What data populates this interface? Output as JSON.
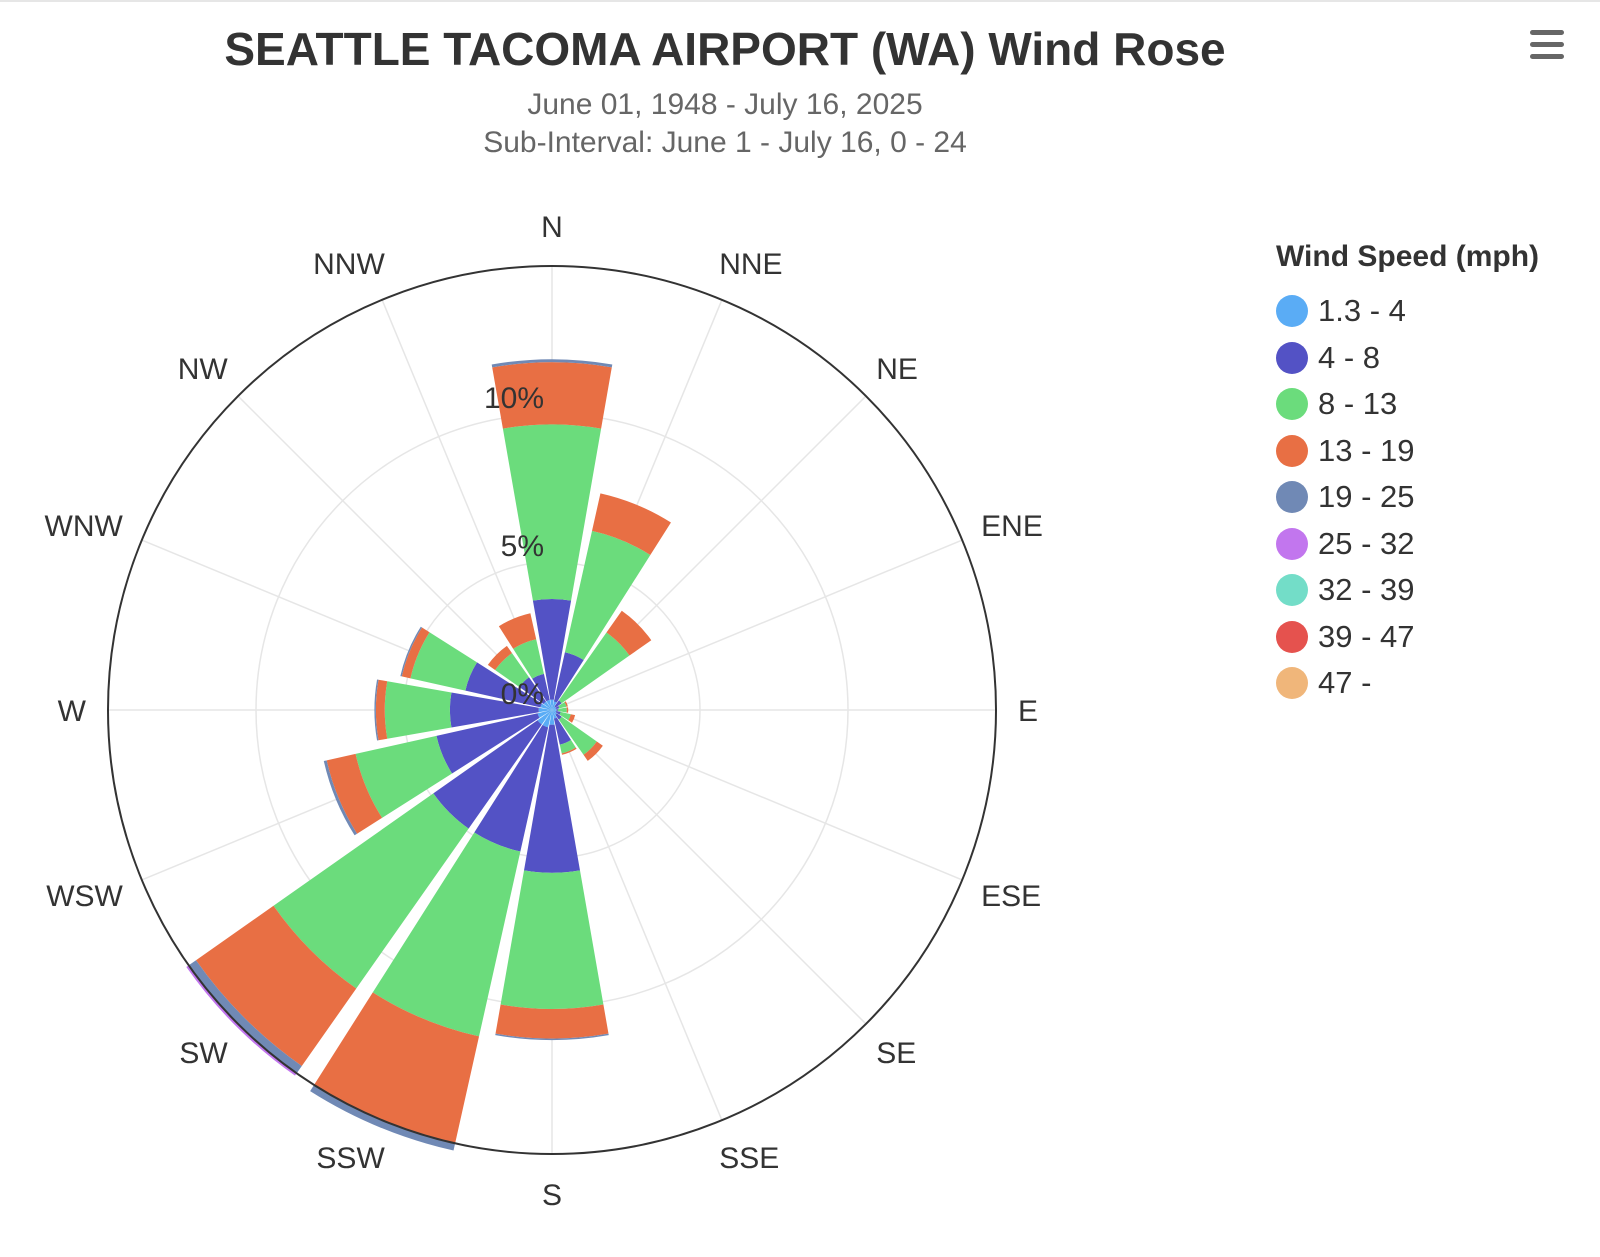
{
  "chart_data": {
    "type": "wind-rose",
    "title": "SEATTLE TACOMA AIRPORT (WA) Wind Rose",
    "subtitle": [
      "June 01, 1948 - July 16, 2025",
      "Sub-Interval: June 1 - July 16, 0 - 24"
    ],
    "directions": [
      "N",
      "NNE",
      "NE",
      "ENE",
      "E",
      "ESE",
      "SE",
      "SSE",
      "S",
      "SSW",
      "SW",
      "WSW",
      "W",
      "WNW",
      "NW",
      "NNW"
    ],
    "radial_ticks": [
      "0%",
      "5%",
      "10%"
    ],
    "radial_tick_values": [
      0,
      5,
      10
    ],
    "radial_max": 15,
    "grid": true,
    "legend_title": "Wind Speed (mph)",
    "legend_position": "right",
    "series": [
      {
        "name": "1.3 - 4",
        "color": "#5aacf5",
        "values": [
          0.35,
          0.3,
          0.15,
          0.15,
          0.15,
          0.15,
          0.2,
          0.3,
          0.5,
          0.6,
          0.6,
          0.5,
          0.45,
          0.4,
          0.35,
          0.35
        ]
      },
      {
        "name": "4 - 8",
        "color": "#5352c5",
        "values": [
          3.4,
          1.7,
          0.25,
          0.1,
          0.05,
          0.15,
          0.2,
          0.9,
          5.0,
          4.3,
          4.3,
          3.5,
          3.0,
          2.6,
          1.0,
          0.9
        ]
      },
      {
        "name": "8 - 13",
        "color": "#6bdc7c",
        "values": [
          5.9,
          4.2,
          2.8,
          0.25,
          0.3,
          0.35,
          1.45,
          0.3,
          4.6,
          6.4,
          6.6,
          2.8,
          2.2,
          1.9,
          1.0,
          1.2
        ]
      },
      {
        "name": "13 - 19",
        "color": "#e86f44",
        "values": [
          2.1,
          1.3,
          0.9,
          0.05,
          0.05,
          0.15,
          0.25,
          0.05,
          1.0,
          3.7,
          3.2,
          1.0,
          0.3,
          0.3,
          0.3,
          0.9
        ]
      },
      {
        "name": "19 - 25",
        "color": "#7089b5",
        "values": [
          0.1,
          0,
          0,
          0,
          0,
          0,
          0,
          0,
          0.05,
          0.25,
          0.3,
          0.1,
          0.05,
          0.05,
          0,
          0
        ]
      },
      {
        "name": "25 - 32",
        "color": "#c276ee",
        "values": [
          0,
          0,
          0,
          0,
          0,
          0,
          0,
          0,
          0,
          0,
          0.1,
          0,
          0,
          0,
          0,
          0
        ]
      },
      {
        "name": "32 - 39",
        "color": "#73ddc8",
        "values": [
          0,
          0,
          0,
          0,
          0,
          0,
          0,
          0,
          0,
          0,
          0,
          0,
          0,
          0,
          0,
          0
        ]
      },
      {
        "name": "39 - 47",
        "color": "#e5524e",
        "values": [
          0,
          0,
          0,
          0,
          0,
          0,
          0,
          0,
          0,
          0,
          0,
          0,
          0,
          0,
          0,
          0
        ]
      },
      {
        "name": "47 -",
        "color": "#f0b67a",
        "values": [
          0,
          0,
          0,
          0,
          0,
          0,
          0,
          0,
          0,
          0,
          0,
          0,
          0,
          0,
          0,
          0
        ]
      }
    ]
  }
}
